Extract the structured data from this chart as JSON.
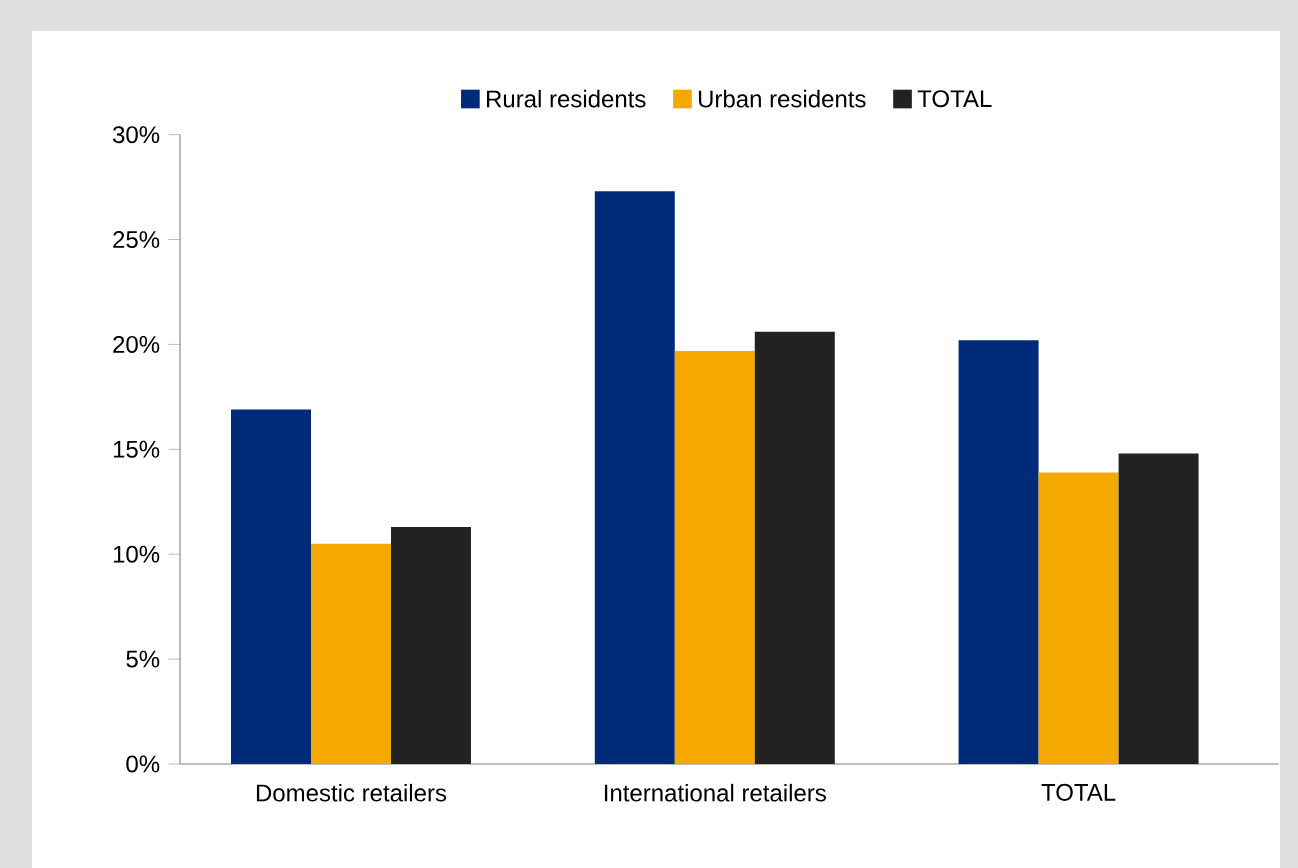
{
  "chart_data": {
    "type": "bar",
    "categories": [
      "Domestic retailers",
      "International retailers",
      "TOTAL"
    ],
    "series": [
      {
        "name": "Rural residents",
        "color": "#002a7a",
        "values": [
          16.9,
          27.3,
          20.2
        ]
      },
      {
        "name": "Urban residents",
        "color": "#f5a800",
        "values": [
          10.5,
          19.7,
          13.9
        ]
      },
      {
        "name": "TOTAL",
        "color": "#222222",
        "values": [
          11.3,
          20.6,
          14.8
        ]
      }
    ],
    "ylim": [
      0,
      30
    ],
    "yticks": [
      {
        "value": 0,
        "label": "0%"
      },
      {
        "value": 5,
        "label": "5%"
      },
      {
        "value": 10,
        "label": "10%"
      },
      {
        "value": 15,
        "label": "15%"
      },
      {
        "value": 20,
        "label": "20%"
      },
      {
        "value": 25,
        "label": "25%"
      },
      {
        "value": 30,
        "label": "30%"
      }
    ],
    "legend": "top",
    "grid": false
  }
}
